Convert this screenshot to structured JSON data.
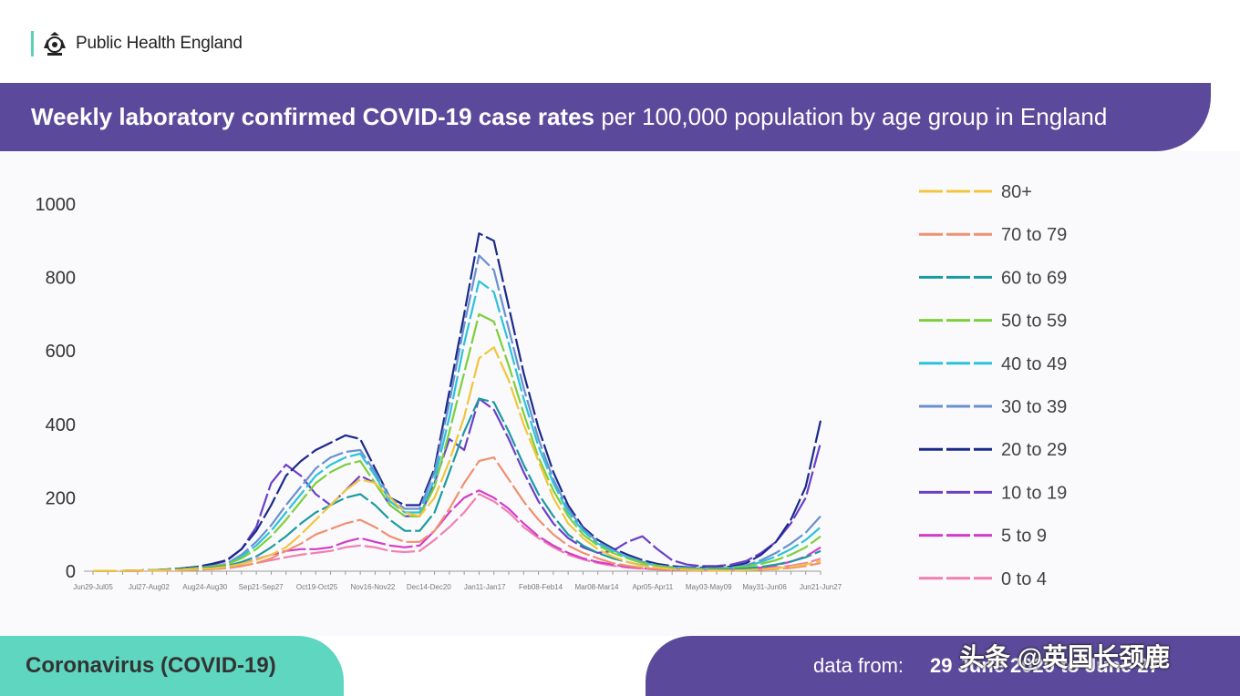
{
  "header": {
    "org_name": "Public Health England",
    "title_bold": "Weekly laboratory confirmed COVID-19 case rates",
    "title_rest": "per 100,000 population by age group in England"
  },
  "footer": {
    "topic": "Coronavirus (COVID-19)",
    "data_from_label": "data from:",
    "data_from_value": "29 June 2020 to June 27",
    "watermark": "头条 @英国长颈鹿"
  },
  "colors": {
    "banner": "#5b4a9b",
    "accent": "#5fd6bf"
  },
  "chart_data": {
    "type": "line",
    "title": "Weekly laboratory confirmed COVID-19 case rates per 100,000 population by age group in England",
    "ylim": [
      0,
      1000
    ],
    "yticks": [
      0,
      200,
      400,
      600,
      800,
      1000
    ],
    "x_tick_labels": [
      "Jun29-Jul05",
      "Jul27-Aug02",
      "Aug24-Aug30",
      "Sep21-Sep27",
      "Oct19-Oct25",
      "Nov16-Nov22",
      "Dec14-Dec20",
      "Jan11-Jan17",
      "Feb08-Feb14",
      "Mar08-Mar14",
      "Apr05-Apr11",
      "May03-May09",
      "May31-Jun06",
      "Jun21-Jun27"
    ],
    "legend_position": "right",
    "series": [
      {
        "name": "80+",
        "color": "#f2c53d",
        "values": [
          1,
          1,
          1,
          2,
          2,
          3,
          4,
          6,
          8,
          12,
          20,
          30,
          45,
          65,
          100,
          140,
          180,
          220,
          250,
          240,
          200,
          160,
          150,
          200,
          300,
          420,
          580,
          610,
          520,
          400,
          300,
          200,
          130,
          90,
          60,
          40,
          25,
          15,
          10,
          6,
          4,
          3,
          2,
          2,
          3,
          5,
          8,
          12,
          18,
          28
        ]
      },
      {
        "name": "70 to 79",
        "color": "#f09070",
        "values": [
          1,
          1,
          1,
          1,
          2,
          2,
          3,
          4,
          6,
          8,
          14,
          22,
          35,
          55,
          75,
          100,
          115,
          130,
          140,
          120,
          95,
          80,
          80,
          110,
          170,
          240,
          300,
          310,
          250,
          190,
          140,
          100,
          70,
          50,
          35,
          22,
          15,
          9,
          6,
          4,
          3,
          2,
          2,
          2,
          3,
          4,
          6,
          9,
          14,
          22
        ]
      },
      {
        "name": "60 to 69",
        "color": "#1b9aa0",
        "values": [
          1,
          1,
          1,
          2,
          2,
          3,
          5,
          7,
          10,
          14,
          25,
          40,
          65,
          95,
          130,
          160,
          180,
          200,
          210,
          180,
          140,
          110,
          110,
          160,
          270,
          380,
          470,
          460,
          380,
          290,
          210,
          150,
          100,
          70,
          50,
          35,
          25,
          16,
          10,
          7,
          5,
          4,
          4,
          5,
          8,
          12,
          18,
          26,
          38,
          55
        ]
      },
      {
        "name": "50 to 59",
        "color": "#7ccf3a",
        "values": [
          1,
          1,
          1,
          2,
          3,
          4,
          6,
          9,
          13,
          18,
          35,
          60,
          95,
          140,
          190,
          240,
          270,
          290,
          300,
          240,
          180,
          150,
          150,
          230,
          380,
          540,
          700,
          680,
          560,
          430,
          310,
          220,
          150,
          100,
          70,
          50,
          35,
          22,
          14,
          9,
          7,
          6,
          6,
          8,
          12,
          20,
          30,
          45,
          65,
          95
        ]
      },
      {
        "name": "40 to 49",
        "color": "#2cc3d8",
        "values": [
          1,
          1,
          1,
          2,
          3,
          4,
          6,
          9,
          13,
          18,
          40,
          70,
          110,
          160,
          210,
          260,
          290,
          310,
          320,
          260,
          190,
          160,
          160,
          250,
          420,
          620,
          790,
          760,
          620,
          470,
          340,
          240,
          160,
          110,
          75,
          55,
          38,
          24,
          15,
          10,
          8,
          7,
          7,
          9,
          14,
          25,
          40,
          60,
          85,
          120
        ]
      },
      {
        "name": "30 to 39",
        "color": "#6a90d0",
        "values": [
          1,
          1,
          1,
          2,
          3,
          4,
          6,
          9,
          14,
          20,
          45,
          80,
          125,
          180,
          230,
          280,
          310,
          325,
          330,
          270,
          200,
          170,
          170,
          270,
          460,
          670,
          860,
          820,
          660,
          500,
          360,
          250,
          170,
          115,
          80,
          58,
          40,
          26,
          16,
          11,
          9,
          8,
          8,
          10,
          16,
          30,
          50,
          75,
          105,
          150
        ]
      },
      {
        "name": "20 to 29",
        "color": "#1a2a8a",
        "values": [
          1,
          1,
          1,
          2,
          3,
          5,
          8,
          12,
          20,
          30,
          60,
          110,
          180,
          260,
          300,
          330,
          350,
          370,
          360,
          280,
          200,
          180,
          180,
          280,
          490,
          700,
          920,
          900,
          720,
          540,
          390,
          270,
          180,
          120,
          85,
          62,
          45,
          30,
          20,
          14,
          11,
          10,
          10,
          13,
          22,
          45,
          80,
          140,
          230,
          410
        ]
      },
      {
        "name": "10 to 19",
        "color": "#6a3fc8",
        "values": [
          1,
          1,
          1,
          2,
          3,
          5,
          8,
          12,
          18,
          28,
          60,
          120,
          240,
          290,
          260,
          210,
          180,
          220,
          260,
          240,
          180,
          150,
          150,
          240,
          360,
          330,
          470,
          440,
          360,
          270,
          190,
          130,
          90,
          65,
          50,
          55,
          80,
          95,
          60,
          30,
          18,
          14,
          14,
          18,
          28,
          50,
          80,
          130,
          200,
          350
        ]
      },
      {
        "name": "5 to 9",
        "color": "#d43cc8",
        "values": [
          1,
          1,
          1,
          1,
          2,
          3,
          4,
          6,
          8,
          12,
          20,
          32,
          45,
          55,
          60,
          60,
          65,
          80,
          90,
          80,
          70,
          65,
          70,
          110,
          160,
          200,
          220,
          200,
          170,
          130,
          95,
          70,
          50,
          35,
          25,
          18,
          12,
          8,
          5,
          4,
          3,
          3,
          3,
          4,
          6,
          10,
          16,
          26,
          40,
          65
        ]
      },
      {
        "name": "0 to 4",
        "color": "#f080b0",
        "values": [
          1,
          1,
          1,
          1,
          2,
          2,
          3,
          4,
          6,
          8,
          14,
          22,
          30,
          38,
          45,
          50,
          55,
          65,
          70,
          65,
          55,
          52,
          55,
          85,
          120,
          160,
          210,
          190,
          160,
          120,
          90,
          65,
          45,
          32,
          22,
          15,
          10,
          7,
          5,
          3,
          2,
          2,
          2,
          3,
          4,
          6,
          10,
          15,
          22,
          34
        ]
      }
    ]
  }
}
